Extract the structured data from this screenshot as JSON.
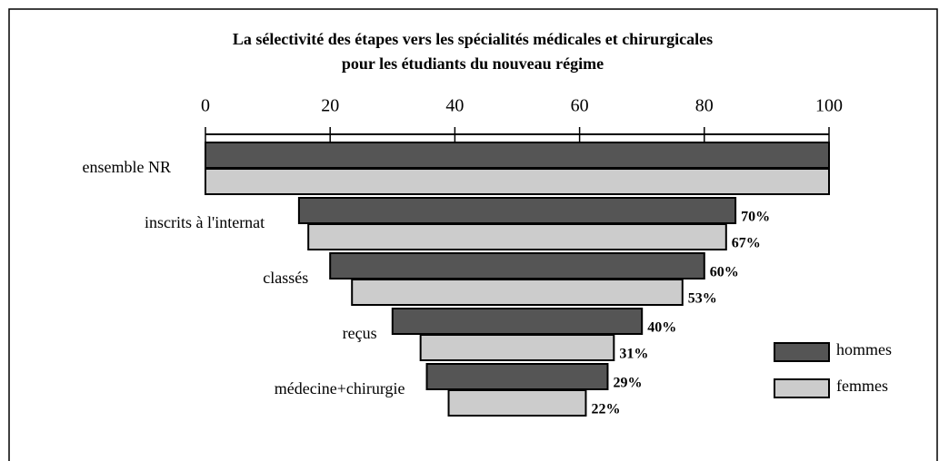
{
  "chart_data": {
    "type": "funnel",
    "title": "La sélectivité des étapes vers les spécialités médicales et chirurgicales",
    "subtitle": "pour les étudiants du nouveau régime",
    "categories": [
      "ensemble NR",
      "inscrits à l'internat",
      "classés",
      "reçus",
      "médecine+chirurgie"
    ],
    "series": [
      {
        "name": "hommes",
        "color": "#555555",
        "values": [
          100,
          70,
          60,
          40,
          29
        ],
        "value_labels": [
          null,
          "70%",
          "60%",
          "40%",
          "29%"
        ]
      },
      {
        "name": "femmes",
        "color": "#cccccc",
        "values": [
          100,
          67,
          53,
          31,
          22
        ],
        "value_labels": [
          null,
          "67%",
          "53%",
          "31%",
          "22%"
        ]
      }
    ],
    "xlim": [
      0,
      100
    ],
    "xticks": [
      0,
      20,
      40,
      60,
      80,
      100
    ],
    "legend": "right"
  }
}
